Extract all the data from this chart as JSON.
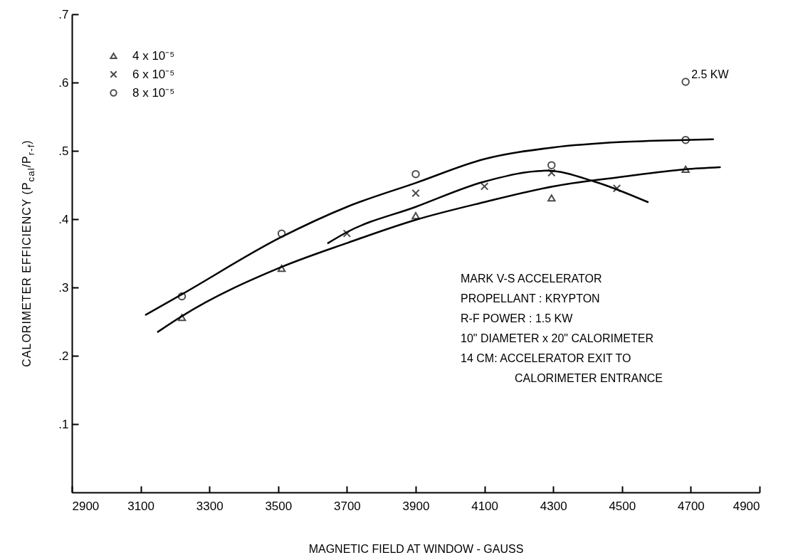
{
  "chart_data": {
    "type": "scatter",
    "xlabel": "MAGNETIC FIELD AT WINDOW - GAUSS",
    "ylabel": "CALORIMETER EFFICIENCY (P$_{cal}$/P$_{r-f}$)",
    "xlim": [
      2900,
      4900
    ],
    "xticks": [
      2900,
      3100,
      3300,
      3500,
      3700,
      3900,
      4100,
      4300,
      4500,
      4700,
      4900
    ],
    "ylim": [
      0,
      0.7
    ],
    "yticks": [
      {
        "value": 0.1,
        "label": ".1"
      },
      {
        "value": 0.2,
        "label": ".2"
      },
      {
        "value": 0.3,
        "label": ".3"
      },
      {
        "value": 0.4,
        "label": ".4"
      },
      {
        "value": 0.5,
        "label": ".5"
      },
      {
        "value": 0.6,
        "label": ".6"
      },
      {
        "value": 0.7,
        "label": ".7"
      }
    ],
    "grid": false,
    "legend": "top left",
    "annotations": [
      {
        "text": "2.5 KW",
        "x": 4685,
        "y": 0.601
      },
      "MARK V-S ACCELERATOR",
      "PROPELLANT : KRYPTON",
      "R-F POWER : 1.5 KW",
      "10\" DIAMETER x 20\" CALORIMETER",
      "14 CM: ACCELERATOR EXIT TO\nCALORIMETER ENTRANCE"
    ],
    "series": [
      {
        "name": "4 x 10⁻⁵",
        "color": "#000000",
        "marker": "triangle",
        "x": [
          3220,
          3510,
          3900,
          4295,
          4685
        ],
        "values": [
          0.256,
          0.328,
          0.405,
          0.431,
          0.473
        ]
      },
      {
        "name": "6 x 10⁻⁵",
        "color": "#000000",
        "marker": "cross",
        "x": [
          3700,
          3900,
          4100,
          4295,
          4485
        ],
        "values": [
          0.379,
          0.438,
          0.448,
          0.468,
          0.445
        ]
      },
      {
        "name": "8 x 10⁻⁵",
        "color": "#000000",
        "marker": "circle",
        "x": [
          3220,
          3510,
          3900,
          4295,
          4685,
          4685
        ],
        "values": [
          0.287,
          0.379,
          0.466,
          0.479,
          0.516,
          0.601
        ]
      },
      {
        "type": "line",
        "color": "#000000",
        "marker": "none",
        "x": [
          3150,
          3220,
          3510,
          3700,
          3900,
          4100,
          4300,
          4500,
          4685,
          4785
        ],
        "values": [
          0.235,
          0.258,
          0.33,
          0.365,
          0.399,
          0.425,
          0.448,
          0.462,
          0.473,
          0.476
        ]
      },
      {
        "type": "line",
        "color": "#000000",
        "marker": "none",
        "x": [
          3645,
          3700,
          3900,
          4100,
          4280,
          4420,
          4575
        ],
        "values": [
          0.365,
          0.381,
          0.418,
          0.455,
          0.471,
          0.455,
          0.425
        ]
      },
      {
        "type": "line",
        "color": "#000000",
        "marker": "none",
        "x": [
          3115,
          3220,
          3510,
          3700,
          3900,
          4100,
          4300,
          4500,
          4685,
          4765
        ],
        "values": [
          0.26,
          0.29,
          0.374,
          0.418,
          0.453,
          0.488,
          0.505,
          0.513,
          0.516,
          0.517
        ]
      }
    ]
  }
}
